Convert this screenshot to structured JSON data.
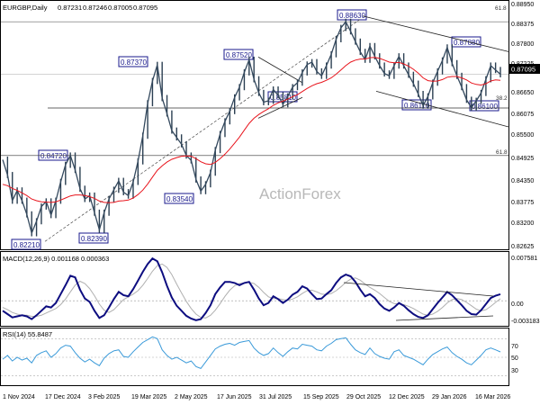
{
  "chart_data": {
    "type": "line",
    "symbol": "EURGBP",
    "timeframe": "Daily",
    "title": "EURGBP,Daily",
    "ohlc": [
      "0.87231",
      "0.87246",
      "0.87005",
      "0.87095"
    ],
    "price": {
      "ylim": [
        0.8198,
        0.8924
      ],
      "ticks": [
        "0.88950",
        "0.88375",
        "0.87800",
        "0.87225",
        "0.86650",
        "0.86075",
        "0.85500",
        "0.84925",
        "0.84350",
        "0.83775",
        "0.83200",
        "0.82625",
        "0.82050"
      ],
      "current": "0.87095",
      "close_series": [
        0.846,
        0.8415,
        0.834,
        0.837,
        0.834,
        0.83,
        0.8245,
        0.828,
        0.8323,
        0.8338,
        0.8298,
        0.834,
        0.8395,
        0.8445,
        0.8472,
        0.843,
        0.8375,
        0.8345,
        0.8355,
        0.8305,
        0.8255,
        0.8305,
        0.8345,
        0.8372,
        0.8398,
        0.8365,
        0.8355,
        0.8395,
        0.8455,
        0.853,
        0.8625,
        0.869,
        0.8737,
        0.864,
        0.8595,
        0.8545,
        0.8525,
        0.8505,
        0.8472,
        0.8458,
        0.8402,
        0.8368,
        0.8388,
        0.8422,
        0.8488,
        0.8535,
        0.8572,
        0.8602,
        0.8642,
        0.8672,
        0.8715,
        0.8752,
        0.8695,
        0.8655,
        0.8628,
        0.8632,
        0.8665,
        0.8648,
        0.8622,
        0.8645,
        0.8672,
        0.8685,
        0.8715,
        0.8738,
        0.8745,
        0.8718,
        0.8705,
        0.8735,
        0.8768,
        0.8812,
        0.8845,
        0.8863,
        0.8835,
        0.8805,
        0.8775,
        0.8752,
        0.8792,
        0.8762,
        0.8735,
        0.8712,
        0.8705,
        0.8735,
        0.8762,
        0.8735,
        0.8708,
        0.8682,
        0.8652,
        0.8618,
        0.8645,
        0.8685,
        0.8718,
        0.875,
        0.8788,
        0.8742,
        0.8705,
        0.8672,
        0.8635,
        0.8612,
        0.8632,
        0.8655,
        0.8695,
        0.8735,
        0.8722,
        0.87095
      ],
      "sma_series": [
        0.8388,
        0.8384,
        0.8376,
        0.837,
        0.8363,
        0.8355,
        0.8345,
        0.834,
        0.8337,
        0.8336,
        0.8335,
        0.8337,
        0.8342,
        0.8348,
        0.8354,
        0.8357,
        0.8357,
        0.8355,
        0.8352,
        0.8347,
        0.8339,
        0.8335,
        0.8334,
        0.8335,
        0.8339,
        0.834,
        0.8342,
        0.8348,
        0.8358,
        0.8371,
        0.8389,
        0.8409,
        0.8429,
        0.8442,
        0.8453,
        0.8461,
        0.8466,
        0.847,
        0.8471,
        0.847,
        0.8463,
        0.8454,
        0.8448,
        0.8446,
        0.8452,
        0.8463,
        0.8476,
        0.8491,
        0.8508,
        0.8526,
        0.8546,
        0.8566,
        0.8581,
        0.8592,
        0.8601,
        0.8609,
        0.8619,
        0.8626,
        0.8631,
        0.8637,
        0.8644,
        0.865,
        0.8659,
        0.8668,
        0.8676,
        0.8682,
        0.8686,
        0.8692,
        0.8699,
        0.871,
        0.8722,
        0.8735,
        0.8745,
        0.8751,
        0.8754,
        0.8754,
        0.8758,
        0.8759,
        0.8756,
        0.8751,
        0.8745,
        0.8743,
        0.8744,
        0.874,
        0.8733,
        0.8724,
        0.8713,
        0.8699,
        0.8691,
        0.8689,
        0.869,
        0.8694,
        0.8701,
        0.8703,
        0.8703,
        0.8699,
        0.8693,
        0.8684,
        0.868,
        0.8678,
        0.8682,
        0.869,
        0.8693,
        0.8692
      ]
    },
    "x_tick_labels": [
      "1 Nov 2024",
      "17 Dec 2024",
      "3 Feb 2025",
      "19 Mar 2025",
      "2 May 2025",
      "17 Jun 2025",
      "31 Jul 2025",
      "15 Sep 2025",
      "29 Oct 2025",
      "12 Dec 2025",
      "29 Jan 2026",
      "16 Mar 2026"
    ],
    "price_labels": [
      "0.88630",
      "0.87880",
      "0.87520",
      "0.87370",
      "0.86110",
      "0.86100",
      "0.85810",
      "0.84720",
      "0.83540",
      "0.82390",
      "0.82210"
    ],
    "fib_levels": [
      {
        "label": "61.8",
        "value": 0.8863
      },
      {
        "label": "38.2",
        "value": 0.8617
      },
      {
        "label": "61.8",
        "value": 0.8472
      }
    ],
    "watermark": "ActionForex",
    "macd": {
      "label": "MACD(12,26,9) 0.001168 0.000363",
      "ticks": [
        "0.007581",
        "0.00",
        "-0.003183"
      ],
      "ylim": [
        -0.0045,
        0.0086
      ],
      "macd_series": [
        -0.0018,
        -0.0024,
        -0.003,
        -0.0028,
        -0.0026,
        -0.0028,
        -0.0033,
        -0.0026,
        -0.0018,
        -0.001,
        -0.0012,
        -0.0004,
        0.0012,
        0.0028,
        0.0045,
        0.0042,
        0.002,
        0.0004,
        -0.0002,
        -0.0018,
        -0.0031,
        -0.0026,
        -0.0012,
        0.0003,
        0.0016,
        0.001,
        0.0008,
        0.0021,
        0.0036,
        0.0052,
        0.0066,
        0.0076,
        0.0071,
        0.0051,
        0.0027,
        0.0006,
        -0.0009,
        -0.0018,
        -0.0027,
        -0.0032,
        -0.0035,
        -0.0033,
        -0.0022,
        -0.0008,
        0.0012,
        0.0024,
        0.0034,
        0.0034,
        0.0032,
        0.0028,
        0.0032,
        0.0034,
        0.002,
        0.0004,
        -0.0008,
        -0.0004,
        0.0008,
        0.0003,
        -0.0004,
        0.0002,
        0.0011,
        0.0016,
        0.0026,
        0.0022,
        0.0012,
        0.0003,
        0.0004,
        0.0012,
        0.0019,
        0.0032,
        0.0042,
        0.0047,
        0.0044,
        0.0034,
        0.002,
        0.0008,
        0.0012,
        0.0005,
        -0.0006,
        -0.0014,
        -0.0018,
        -0.0012,
        -0.0004,
        -0.0009,
        -0.0017,
        -0.0024,
        -0.0029,
        -0.0031,
        -0.0026,
        -0.0015,
        -0.0004,
        0.0006,
        0.0016,
        0.001,
        0.0001,
        -0.0008,
        -0.0018,
        -0.0024,
        -0.0025,
        -0.0017,
        -0.0006,
        0.0005,
        0.0009,
        0.00117
      ],
      "signal_series": [
        -0.0012,
        -0.0016,
        -0.0021,
        -0.0024,
        -0.0026,
        -0.0026,
        -0.0028,
        -0.0028,
        -0.0026,
        -0.0022,
        -0.0018,
        -0.0014,
        -0.0007,
        0.0003,
        0.0016,
        0.0028,
        0.0035,
        0.0031,
        0.0022,
        0.0009,
        -0.0006,
        -0.0017,
        -0.0021,
        -0.0016,
        -0.0007,
        0.0002,
        0.0007,
        0.0012,
        0.0018,
        0.0028,
        0.004,
        0.0053,
        0.0063,
        0.0066,
        0.006,
        0.0047,
        0.003,
        0.0014,
        -0.0001,
        -0.0014,
        -0.0024,
        -0.003,
        -0.0031,
        -0.0026,
        -0.0017,
        -0.0005,
        0.0008,
        0.0019,
        0.0027,
        0.0031,
        0.0032,
        0.0033,
        0.0031,
        0.0024,
        0.0015,
        0.0007,
        0.0004,
        0.0004,
        0.0002,
        0.0001,
        0.0003,
        0.0007,
        0.0013,
        0.0018,
        0.0019,
        0.0016,
        0.0012,
        0.0011,
        0.0013,
        0.0018,
        0.0025,
        0.0033,
        0.0039,
        0.0041,
        0.0037,
        0.003,
        0.0024,
        0.0019,
        0.0013,
        0.0006,
        -0.0001,
        -0.0005,
        -0.0006,
        -0.0007,
        -0.001,
        -0.0014,
        -0.0019,
        -0.0024,
        -0.0026,
        -0.0024,
        -0.0019,
        -0.0012,
        -0.0004,
        0.0002,
        0.0004,
        0.0002,
        -0.0003,
        -0.0009,
        -0.0015,
        -0.0018,
        -0.0016,
        -0.001,
        -0.0003,
        0.00036
      ]
    },
    "rsi": {
      "label": "RSI(14) 55.8487",
      "ticks": [
        "70",
        "50",
        "30"
      ],
      "ylim": [
        20,
        80
      ],
      "series": [
        48,
        52,
        46,
        50,
        47,
        49,
        44,
        52,
        55,
        57,
        50,
        54,
        60,
        63,
        62,
        55,
        49,
        45,
        48,
        44,
        41,
        49,
        54,
        57,
        58,
        51,
        50,
        56,
        61,
        66,
        69,
        72,
        70,
        58,
        52,
        48,
        50,
        47,
        44,
        46,
        40,
        38,
        45,
        52,
        59,
        62,
        64,
        65,
        63,
        66,
        67,
        68,
        60,
        55,
        52,
        54,
        60,
        55,
        51,
        56,
        60,
        59,
        64,
        63,
        62,
        58,
        57,
        62,
        65,
        69,
        70,
        71,
        64,
        58,
        55,
        53,
        60,
        54,
        51,
        49,
        48,
        56,
        58,
        52,
        50,
        48,
        45,
        42,
        48,
        53,
        56,
        59,
        61,
        55,
        51,
        48,
        44,
        42,
        47,
        52,
        58,
        60,
        58,
        55.8487
      ]
    }
  }
}
